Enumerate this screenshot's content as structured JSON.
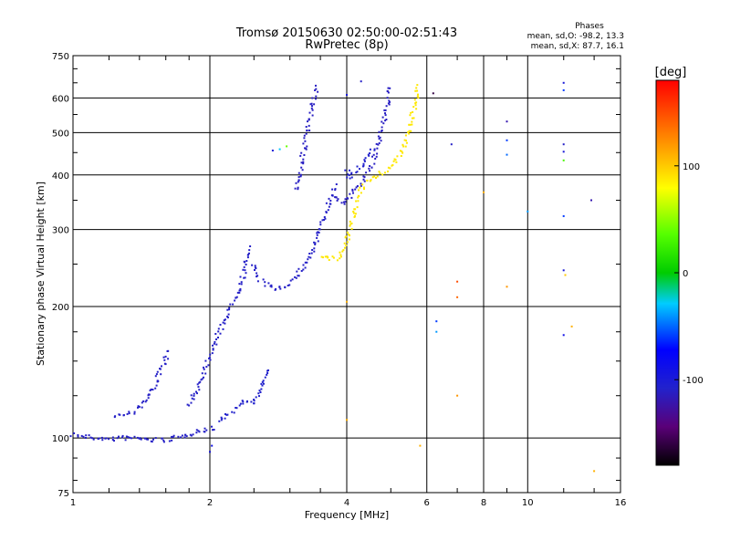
{
  "chart_data": {
    "type": "scatter",
    "title": "Tromsø 20150630 02:50:00-02:51:43",
    "subtitle": "RwPretec (8p)",
    "xlabel": "Frequency [MHz]",
    "ylabel": "Stationary phase Virtual Height [km]",
    "xscale": "log",
    "yscale": "log",
    "xlim": [
      1,
      16
    ],
    "ylim": [
      75,
      750
    ],
    "grid": true,
    "xticks": [
      1,
      2,
      4,
      6,
      8,
      10,
      16
    ],
    "xtick_labels": [
      "1",
      "2",
      "4",
      "6",
      "8",
      "10",
      "16"
    ],
    "yticks": [
      75,
      100,
      200,
      300,
      400,
      500,
      600,
      750
    ],
    "ytick_labels": [
      "75",
      "100",
      "200",
      "300",
      "400",
      "500",
      "600",
      "750"
    ],
    "info": {
      "heading": "Phases",
      "line1": "mean, sd,O: -98.2, 13.3",
      "line2": "mean, sd,X:  87.7, 16.1"
    },
    "colorbar": {
      "label": "[deg]",
      "range": [
        -180,
        180
      ],
      "ticks": [
        100,
        0,
        -100
      ],
      "tick_labels": [
        "100",
        "0",
        "-100"
      ]
    },
    "traces": [
      {
        "phase": -110,
        "points": [
          [
            1.0,
            102
          ],
          [
            1.05,
            101
          ],
          [
            1.1,
            100
          ],
          [
            1.15,
            100
          ],
          [
            1.2,
            99
          ],
          [
            1.25,
            100
          ],
          [
            1.3,
            100
          ],
          [
            1.35,
            100
          ],
          [
            1.4,
            100
          ],
          [
            1.45,
            99
          ],
          [
            1.5,
            99
          ],
          [
            1.55,
            99
          ],
          [
            1.6,
            99
          ],
          [
            1.65,
            100
          ],
          [
            1.7,
            100
          ],
          [
            1.75,
            101
          ],
          [
            1.8,
            102
          ],
          [
            1.85,
            103
          ],
          [
            1.9,
            104
          ],
          [
            1.95,
            104
          ],
          [
            2.0,
            105
          ],
          [
            2.03,
            106
          ]
        ]
      },
      {
        "phase": -110,
        "points": [
          [
            1.23,
            112
          ],
          [
            1.27,
            113
          ],
          [
            1.31,
            113
          ],
          [
            1.35,
            115
          ],
          [
            1.4,
            118
          ],
          [
            1.45,
            122
          ],
          [
            1.5,
            130
          ],
          [
            1.55,
            140
          ],
          [
            1.6,
            152
          ],
          [
            1.63,
            160
          ]
        ]
      },
      {
        "phase": -110,
        "points": [
          [
            1.8,
            118
          ],
          [
            1.85,
            125
          ],
          [
            1.9,
            135
          ],
          [
            1.95,
            145
          ],
          [
            2.0,
            155
          ],
          [
            2.05,
            165
          ],
          [
            2.1,
            175
          ],
          [
            2.15,
            185
          ],
          [
            2.2,
            195
          ],
          [
            2.25,
            205
          ],
          [
            2.3,
            215
          ],
          [
            2.35,
            230
          ],
          [
            2.4,
            245
          ],
          [
            2.42,
            265
          ],
          [
            2.44,
            275
          ]
        ]
      },
      {
        "phase": -110,
        "points": [
          [
            2.5,
            250
          ],
          [
            2.55,
            235
          ],
          [
            2.6,
            228
          ],
          [
            2.7,
            222
          ],
          [
            2.8,
            220
          ],
          [
            2.9,
            222
          ],
          [
            3.0,
            228
          ],
          [
            3.1,
            235
          ],
          [
            3.2,
            245
          ],
          [
            3.3,
            258
          ],
          [
            3.4,
            275
          ],
          [
            3.5,
            300
          ],
          [
            3.6,
            330
          ],
          [
            3.7,
            360
          ],
          [
            3.8,
            380
          ]
        ]
      },
      {
        "phase": -112,
        "points": [
          [
            3.75,
            360
          ],
          [
            3.8,
            350
          ],
          [
            3.9,
            345
          ],
          [
            4.0,
            350
          ],
          [
            4.1,
            360
          ],
          [
            4.2,
            375
          ],
          [
            4.3,
            385
          ],
          [
            4.4,
            395
          ],
          [
            4.5,
            410
          ],
          [
            4.6,
            440
          ],
          [
            4.7,
            480
          ],
          [
            4.8,
            520
          ],
          [
            4.9,
            570
          ],
          [
            4.95,
            610
          ],
          [
            5.0,
            640
          ]
        ]
      },
      {
        "phase": -112,
        "points": [
          [
            3.1,
            370
          ],
          [
            3.15,
            400
          ],
          [
            3.2,
            440
          ],
          [
            3.25,
            480
          ],
          [
            3.3,
            520
          ],
          [
            3.35,
            560
          ],
          [
            3.4,
            600
          ],
          [
            3.45,
            640
          ]
        ]
      },
      {
        "phase": -108,
        "points": [
          [
            4.0,
            410
          ],
          [
            4.05,
            395
          ],
          [
            4.1,
            400
          ],
          [
            4.2,
            410
          ],
          [
            4.3,
            420
          ],
          [
            4.4,
            430
          ],
          [
            4.5,
            445
          ],
          [
            4.6,
            460
          ]
        ]
      },
      {
        "phase": 88,
        "points": [
          [
            3.5,
            262
          ],
          [
            3.6,
            258
          ],
          [
            3.7,
            256
          ],
          [
            3.8,
            258
          ],
          [
            3.9,
            265
          ],
          [
            4.0,
            280
          ],
          [
            4.1,
            310
          ],
          [
            4.2,
            345
          ],
          [
            4.3,
            370
          ],
          [
            4.4,
            385
          ],
          [
            4.6,
            395
          ],
          [
            4.8,
            405
          ],
          [
            5.0,
            420
          ],
          [
            5.2,
            440
          ],
          [
            5.4,
            470
          ],
          [
            5.5,
            510
          ],
          [
            5.6,
            560
          ],
          [
            5.7,
            610
          ],
          [
            5.75,
            650
          ]
        ]
      },
      {
        "phase": -108,
        "points": [
          [
            2.1,
            108
          ],
          [
            2.2,
            114
          ],
          [
            2.3,
            118
          ],
          [
            2.4,
            122
          ],
          [
            2.5,
            120
          ],
          [
            2.6,
            130
          ],
          [
            2.7,
            145
          ]
        ]
      }
    ],
    "scatter_points": [
      {
        "x": 6.2,
        "y": 615,
        "phase": -160
      },
      {
        "x": 6.3,
        "y": 185,
        "phase": -60
      },
      {
        "x": 6.3,
        "y": 175,
        "phase": -40
      },
      {
        "x": 6.8,
        "y": 470,
        "phase": -110
      },
      {
        "x": 7.0,
        "y": 228,
        "phase": 150
      },
      {
        "x": 7.0,
        "y": 210,
        "phase": 140
      },
      {
        "x": 7.0,
        "y": 125,
        "phase": 120
      },
      {
        "x": 8.0,
        "y": 365,
        "phase": 110
      },
      {
        "x": 9.0,
        "y": 530,
        "phase": -120
      },
      {
        "x": 9.0,
        "y": 480,
        "phase": -60
      },
      {
        "x": 9.0,
        "y": 445,
        "phase": -50
      },
      {
        "x": 9.0,
        "y": 222,
        "phase": 120
      },
      {
        "x": 10.0,
        "y": 330,
        "phase": -40
      },
      {
        "x": 12.0,
        "y": 650,
        "phase": -100
      },
      {
        "x": 12.0,
        "y": 625,
        "phase": -60
      },
      {
        "x": 12.0,
        "y": 470,
        "phase": -110
      },
      {
        "x": 12.0,
        "y": 452,
        "phase": -100
      },
      {
        "x": 12.0,
        "y": 432,
        "phase": 30
      },
      {
        "x": 12.0,
        "y": 322,
        "phase": -60
      },
      {
        "x": 12.0,
        "y": 242,
        "phase": -100
      },
      {
        "x": 12.1,
        "y": 236,
        "phase": 100
      },
      {
        "x": 12.0,
        "y": 172,
        "phase": -90
      },
      {
        "x": 12.5,
        "y": 180,
        "phase": 110
      },
      {
        "x": 13.8,
        "y": 350,
        "phase": -120
      },
      {
        "x": 14.0,
        "y": 84,
        "phase": 110
      },
      {
        "x": 2.75,
        "y": 455,
        "phase": -100
      },
      {
        "x": 2.85,
        "y": 458,
        "phase": -30
      },
      {
        "x": 2.95,
        "y": 465,
        "phase": 40
      },
      {
        "x": 4.0,
        "y": 610,
        "phase": -100
      },
      {
        "x": 4.0,
        "y": 205,
        "phase": 110
      },
      {
        "x": 4.0,
        "y": 110,
        "phase": 110
      },
      {
        "x": 4.3,
        "y": 655,
        "phase": -110
      },
      {
        "x": 5.8,
        "y": 96,
        "phase": 110
      },
      {
        "x": 2.0,
        "y": 93,
        "phase": -100
      },
      {
        "x": 2.02,
        "y": 96,
        "phase": -90
      }
    ]
  }
}
